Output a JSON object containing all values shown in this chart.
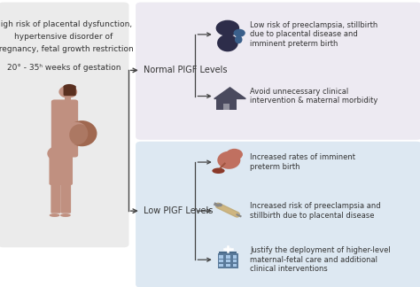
{
  "bg_color": "#ffffff",
  "left_box_color": "#ebebeb",
  "top_right_box_color": "#edeaf2",
  "bottom_right_box_color": "#dde8f2",
  "left_text": [
    "High risk of placental dysfunction,",
    "hypertensive disorder of",
    "pregnancy, fetal growth restriction",
    "",
    "20° - 35ʰ weeks of gestation"
  ],
  "normal_label": "Normal PlGF Levels",
  "low_label": "Low PlGF Levels",
  "normal_outcomes": [
    "Low risk of preeclampsia, stillbirth\ndue to placental disease and\nimminent preterm birth",
    "Avoid unnecessary clinical\nintervention & maternal morbidity"
  ],
  "low_outcomes": [
    "Increased rates of imminent\npreterm birth",
    "Increased risk of preeclampsia and\nstillbirth due to placental disease",
    "Justify the deployment of higher-level\nmaternal-fetal care and additional\nclinical interventions"
  ],
  "arrow_color": "#444444",
  "text_color": "#333333",
  "label_color": "#333333",
  "icon_person_color": "#2d2d4a",
  "icon_house_color": "#4a4a5e",
  "icon_fetus_color": "#c07060",
  "icon_needle_color": "#c0a870",
  "icon_hospital_color": "#5a7a9a",
  "pregnant_skin": "#c09080",
  "pregnant_belly": "#a06850",
  "fontsize_main": 6.5,
  "fontsize_label": 7.0,
  "fontsize_outcome": 6.0
}
